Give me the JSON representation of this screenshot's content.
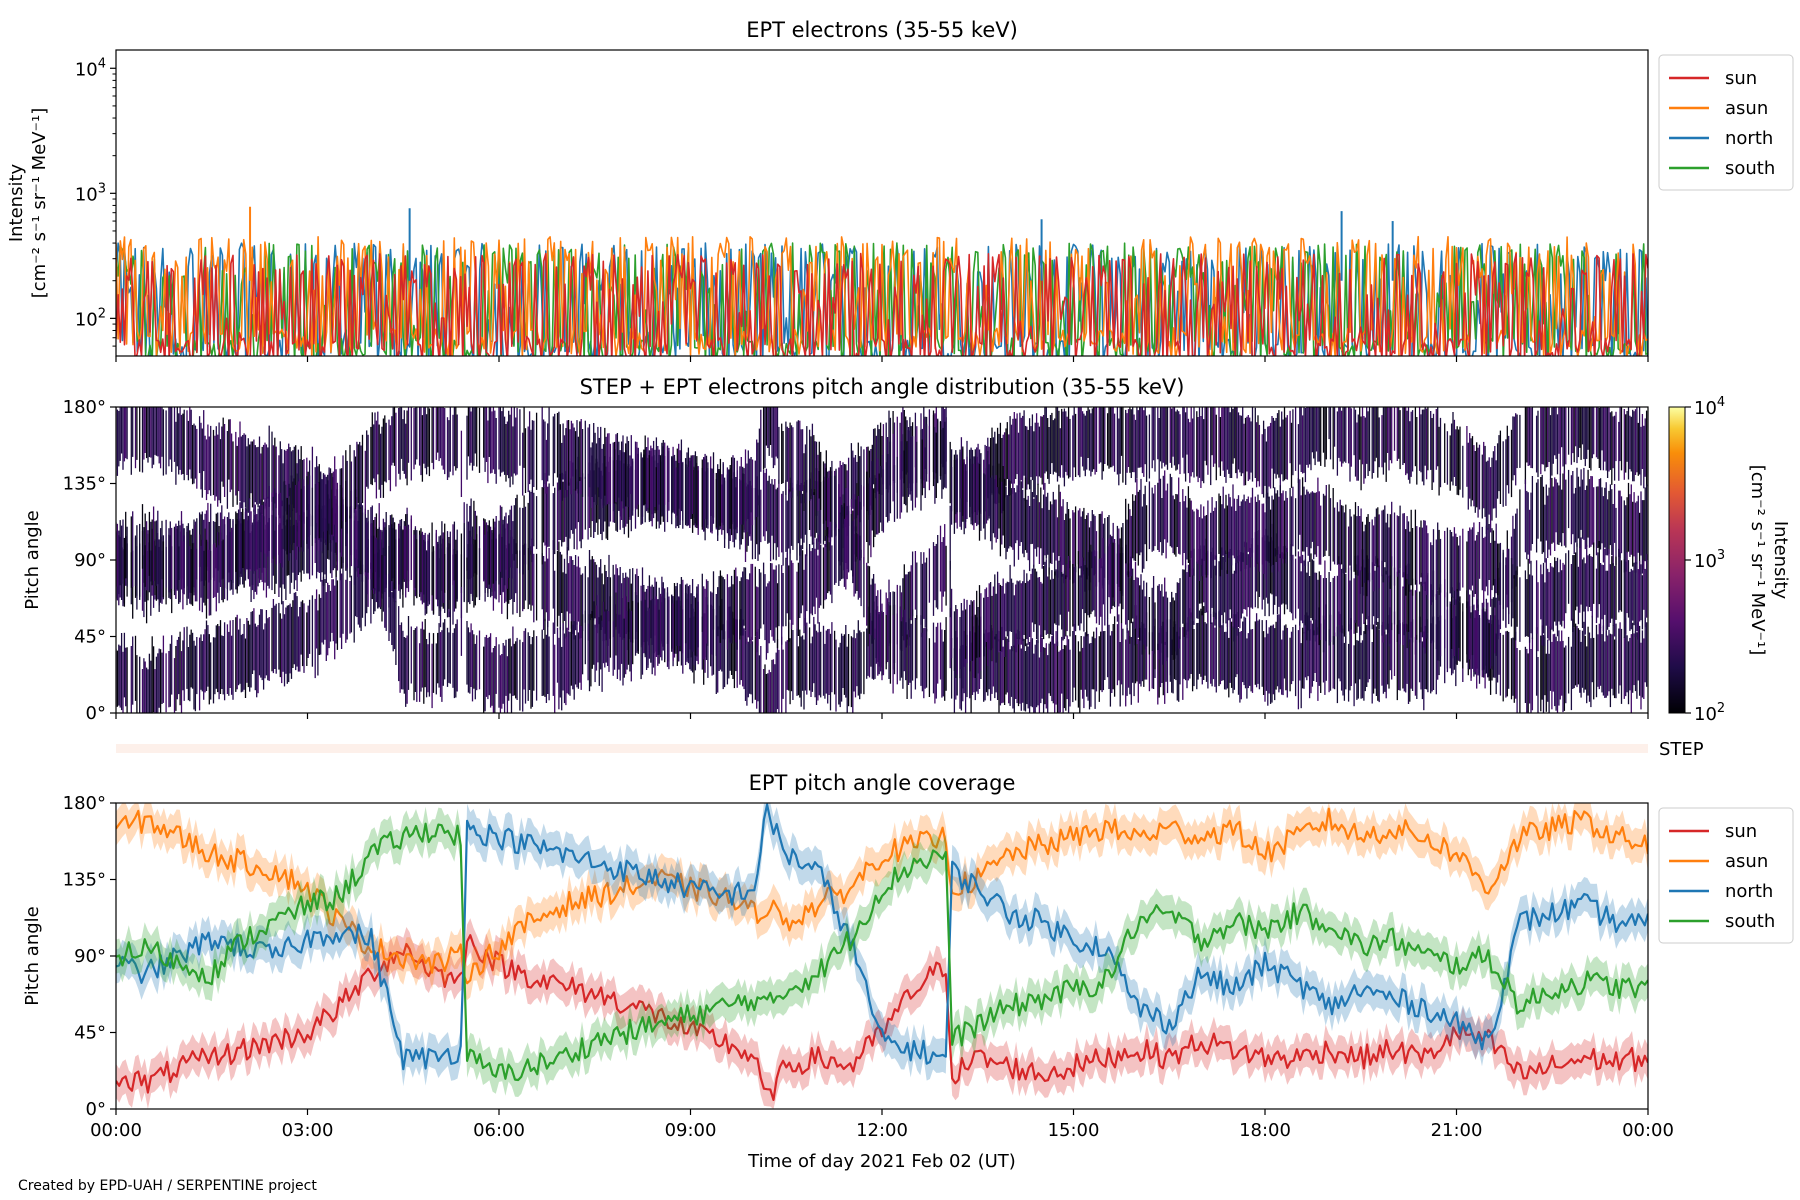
{
  "credit": "Created by EPD-UAH / SERPENTINE project",
  "colors": {
    "sun": "#d62728",
    "asun": "#ff7f0e",
    "north": "#1f77b4",
    "south": "#2ca02c",
    "step_band": "#fdf0ea"
  },
  "chart_data": [
    {
      "type": "line",
      "title": "EPT electrons (35-55 keV)",
      "ylabel_line1": "Intensity",
      "ylabel_line2": "[cm⁻² s⁻¹ sr⁻¹ MeV⁻¹]",
      "yscale": "log",
      "ylim": [
        50,
        14000
      ],
      "y_ticks": [
        {
          "value": 100,
          "base": "10",
          "exp": "2"
        },
        {
          "value": 1000,
          "base": "10",
          "exp": "3"
        },
        {
          "value": 10000,
          "base": "10",
          "exp": "4"
        }
      ],
      "x_unit": "hours of 2021 Feb 02 (UT)",
      "xlim": [
        0,
        24
      ],
      "legend_position": "outside right, top",
      "series": [
        {
          "name": "sun",
          "color_key": "sun",
          "typical_range": [
            50,
            330
          ]
        },
        {
          "name": "asun",
          "color_key": "asun",
          "typical_range": [
            60,
            450
          ]
        },
        {
          "name": "north",
          "color_key": "north",
          "typical_range": [
            50,
            400
          ]
        },
        {
          "name": "south",
          "color_key": "south",
          "typical_range": [
            50,
            400
          ]
        }
      ],
      "peaks": [
        {
          "series": "asun",
          "x": 2.1,
          "y": 780
        },
        {
          "series": "north",
          "x": 4.6,
          "y": 760
        },
        {
          "series": "north",
          "x": 19.2,
          "y": 720
        },
        {
          "series": "north",
          "x": 14.5,
          "y": 620
        },
        {
          "series": "north",
          "x": 20.0,
          "y": 600
        }
      ]
    },
    {
      "type": "heatmap",
      "title": "STEP + EPT electrons pitch angle distribution (35-55 keV)",
      "ylabel": "Pitch angle",
      "ylim": [
        0,
        180
      ],
      "y_ticks": [
        "0°",
        "45°",
        "90°",
        "135°",
        "180°"
      ],
      "xlim": [
        0,
        24
      ],
      "colormap": "inferno (log)",
      "colorbar": {
        "label_line1": "Intensity",
        "label_line2": "[cm⁻² s⁻¹ sr⁻¹ MeV⁻¹]",
        "range": [
          100,
          10000
        ],
        "ticks": [
          {
            "value": 100,
            "base": "10",
            "exp": "2"
          },
          {
            "value": 1000,
            "base": "10",
            "exp": "3"
          },
          {
            "value": 10000,
            "base": "10",
            "exp": "4"
          }
        ]
      },
      "typical_intensity": [
        100,
        250
      ]
    },
    {
      "type": "band",
      "label": "STEP",
      "xlim": [
        0,
        24
      ]
    },
    {
      "type": "line",
      "title": "EPT pitch angle coverage",
      "ylabel": "Pitch angle",
      "ylim": [
        0,
        180
      ],
      "y_ticks": [
        "0°",
        "45°",
        "90°",
        "135°",
        "180°"
      ],
      "xlim": [
        0,
        24
      ],
      "x_ticks": [
        "00:00",
        "03:00",
        "06:00",
        "09:00",
        "12:00",
        "15:00",
        "18:00",
        "21:00",
        "00:00"
      ],
      "xlabel": "Time of day 2021 Feb 02 (UT)",
      "legend_position": "outside right, top",
      "shaded_halfwidth_deg": 10,
      "x": [
        0,
        0.5,
        1,
        1.5,
        2,
        2.5,
        3,
        3.5,
        4,
        4.5,
        5,
        5.4,
        5.5,
        6,
        6.5,
        7,
        7.5,
        8,
        8.5,
        9,
        9.5,
        10,
        10.2,
        10.5,
        11,
        11.5,
        12,
        12.5,
        13,
        13.1,
        13.5,
        14,
        14.5,
        15,
        15.5,
        16,
        16.5,
        17,
        17.5,
        18,
        18.5,
        19,
        19.5,
        20,
        20.5,
        21,
        21.5,
        22,
        22.5,
        23,
        23.5,
        24
      ],
      "series": [
        {
          "name": "sun",
          "color_key": "sun",
          "values": [
            20,
            15,
            25,
            30,
            35,
            40,
            45,
            60,
            80,
            95,
            80,
            75,
            100,
            85,
            78,
            72,
            68,
            62,
            55,
            45,
            40,
            30,
            5,
            25,
            30,
            25,
            45,
            70,
            85,
            20,
            30,
            25,
            20,
            25,
            30,
            35,
            30,
            40,
            35,
            30,
            30,
            35,
            30,
            35,
            30,
            45,
            40,
            20,
            25,
            30,
            28,
            30
          ]
        },
        {
          "name": "asun",
          "color_key": "asun",
          "values": [
            165,
            170,
            160,
            150,
            145,
            140,
            130,
            110,
            95,
            90,
            85,
            90,
            80,
            95,
            110,
            120,
            125,
            130,
            135,
            130,
            125,
            115,
            120,
            110,
            120,
            130,
            150,
            155,
            160,
            130,
            135,
            150,
            155,
            160,
            165,
            160,
            165,
            160,
            165,
            150,
            160,
            170,
            160,
            165,
            160,
            150,
            130,
            160,
            165,
            170,
            160,
            155
          ]
        },
        {
          "name": "north",
          "color_key": "north",
          "values": [
            85,
            80,
            90,
            100,
            95,
            90,
            100,
            105,
            100,
            30,
            30,
            35,
            165,
            160,
            155,
            150,
            145,
            140,
            135,
            130,
            125,
            130,
            175,
            150,
            140,
            100,
            40,
            35,
            30,
            140,
            130,
            115,
            110,
            100,
            95,
            60,
            50,
            80,
            70,
            85,
            75,
            60,
            70,
            65,
            60,
            50,
            40,
            110,
            115,
            120,
            110,
            108
          ]
        },
        {
          "name": "south",
          "color_key": "south",
          "values": [
            90,
            95,
            85,
            80,
            100,
            110,
            120,
            125,
            150,
            160,
            165,
            160,
            30,
            20,
            25,
            30,
            40,
            45,
            50,
            55,
            60,
            65,
            60,
            70,
            80,
            100,
            130,
            145,
            150,
            40,
            50,
            60,
            65,
            70,
            75,
            110,
            115,
            100,
            110,
            105,
            115,
            110,
            95,
            100,
            90,
            85,
            90,
            60,
            70,
            75,
            72,
            70
          ]
        }
      ]
    }
  ]
}
